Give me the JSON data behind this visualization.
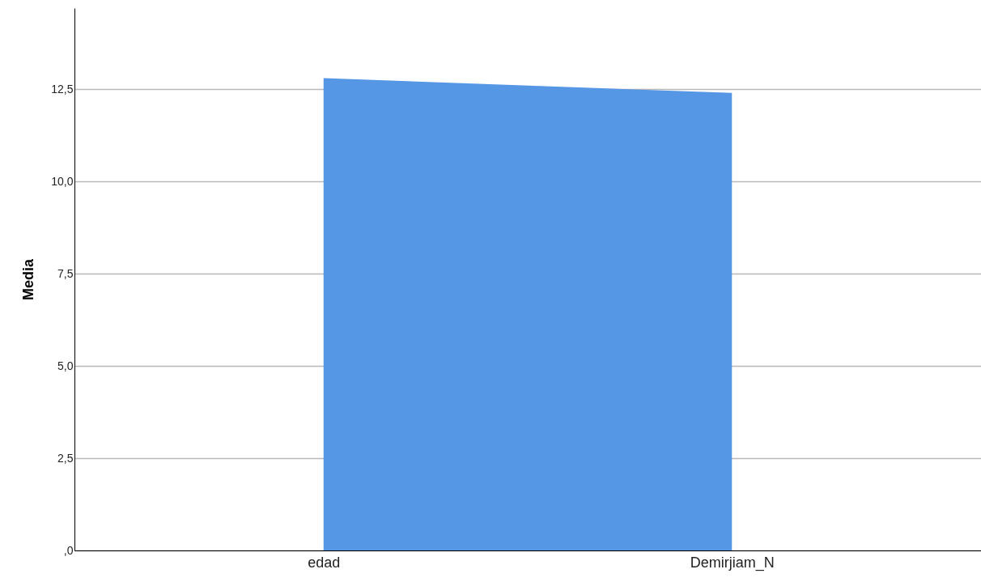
{
  "chart_data": {
    "type": "area",
    "ylabel": "Media",
    "categories": [
      "edad",
      "Demirjiam_N"
    ],
    "series": [
      {
        "color": "#5596e5",
        "values": [
          12.8,
          12.4
        ]
      }
    ],
    "ylim": [
      0,
      14.7
    ],
    "yticks": [
      {
        "value": 0,
        "label": ",0"
      },
      {
        "value": 2.5,
        "label": "2,5"
      },
      {
        "value": 5,
        "label": "5,0"
      },
      {
        "value": 7.5,
        "label": "7,5"
      },
      {
        "value": 10,
        "label": "10,0"
      },
      {
        "value": 12.5,
        "label": "12,5"
      }
    ],
    "grid": "y"
  }
}
